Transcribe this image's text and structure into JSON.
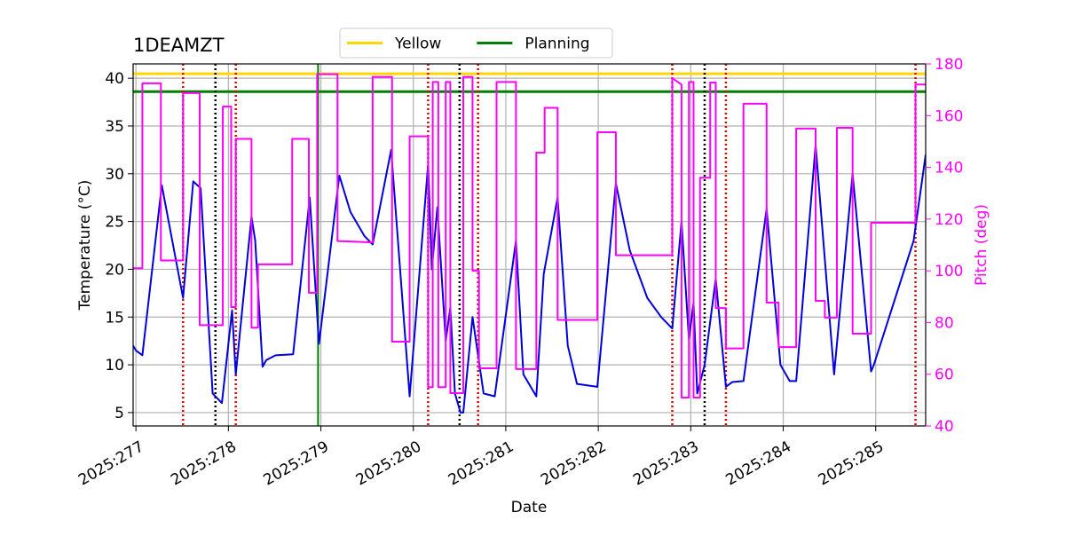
{
  "chart_data": {
    "type": "line",
    "title": "1DEAMZT",
    "xlabel": "Date",
    "ylabel": "Temperature (°C)",
    "y2label": "Pitch (deg)",
    "y2color": "#ff00ff",
    "grid": true,
    "legend": "upper center",
    "xlim": [
      276.97,
      285.54
    ],
    "xticks": [
      {
        "value": 277,
        "label": "2025:277"
      },
      {
        "value": 278,
        "label": "2025:278"
      },
      {
        "value": 279,
        "label": "2025:279"
      },
      {
        "value": 280,
        "label": "2025:280"
      },
      {
        "value": 281,
        "label": "2025:281"
      },
      {
        "value": 282,
        "label": "2025:282"
      },
      {
        "value": 283,
        "label": "2025:283"
      },
      {
        "value": 284,
        "label": "2025:284"
      },
      {
        "value": 285,
        "label": "2025:285"
      }
    ],
    "ylim": [
      3.6,
      41.5
    ],
    "yticks": [
      5,
      10,
      15,
      20,
      25,
      30,
      35,
      40
    ],
    "y2lim": [
      40,
      180
    ],
    "y2ticks": [
      40,
      60,
      80,
      100,
      120,
      140,
      160,
      180
    ],
    "hlines": [
      {
        "name": "Yellow",
        "color": "#ffd700",
        "value": 40.47
      },
      {
        "name": "Planning",
        "color": "#008000",
        "value": 38.6
      }
    ],
    "vlines": [
      {
        "color": "#dd0000",
        "style": "dotted",
        "x": [
          277.51,
          278.08,
          280.16,
          280.7,
          282.8,
          283.38,
          285.43
        ]
      },
      {
        "color": "#000000",
        "style": "dotted",
        "x": [
          277.86,
          280.5,
          283.15
        ]
      },
      {
        "color": "#008000",
        "style": "solid",
        "x": [
          278.97
        ]
      }
    ],
    "series": [
      {
        "color": "#0000dd",
        "x": [
          276.97,
          277.0,
          277.07,
          277.28,
          277.51,
          277.62,
          277.7,
          277.83,
          277.93,
          278.04,
          278.08,
          278.25,
          278.29,
          278.37,
          278.41,
          278.51,
          278.7,
          278.88,
          278.98,
          279.2,
          279.32,
          279.47,
          279.56,
          279.76,
          279.96,
          280.16,
          280.2,
          280.26,
          280.35,
          280.4,
          280.45,
          280.51,
          280.54,
          280.64,
          280.76,
          280.88,
          281.11,
          281.19,
          281.33,
          281.41,
          281.56,
          281.67,
          281.77,
          281.99,
          282.19,
          282.34,
          282.53,
          282.68,
          282.8,
          282.9,
          282.98,
          283.03,
          283.07,
          283.15,
          283.27,
          283.38,
          283.45,
          283.57,
          283.82,
          283.97,
          284.07,
          284.14,
          284.35,
          284.55,
          284.75,
          284.95,
          284.98,
          285.41,
          285.54
        ],
        "values": [
          12,
          11.5,
          11,
          28.8,
          17,
          29.2,
          28.5,
          7,
          6,
          15.7,
          9,
          25.5,
          23,
          9.8,
          10.5,
          11,
          11.1,
          27.5,
          12.2,
          29.8,
          26,
          23.5,
          22.6,
          32.5,
          6.7,
          31,
          20,
          26.5,
          12.5,
          16,
          7,
          5,
          5,
          15,
          7,
          6.7,
          23,
          9,
          6.7,
          19.5,
          27.5,
          12,
          8,
          7.7,
          29,
          22,
          17,
          15,
          13.8,
          25,
          12.7,
          16.5,
          7,
          10,
          19,
          7.7,
          8.2,
          8.3,
          26.3,
          10,
          8.3,
          8.3,
          33,
          9,
          30,
          9.3,
          10,
          23,
          32
        ]
      },
      {
        "color": "#ff00ff",
        "axis": "y2",
        "x": [
          276.97,
          277.07,
          277.07,
          277.27,
          277.27,
          277.51,
          277.51,
          277.69,
          277.69,
          277.94,
          277.94,
          278.03,
          278.03,
          278.08,
          278.08,
          278.25,
          278.25,
          278.32,
          278.32,
          278.69,
          278.69,
          278.87,
          278.87,
          278.96,
          278.96,
          279.18,
          279.18,
          279.56,
          279.56,
          279.77,
          279.77,
          279.96,
          279.96,
          280.16,
          280.16,
          280.21,
          280.21,
          280.27,
          280.27,
          280.35,
          280.35,
          280.4,
          280.4,
          280.54,
          280.54,
          280.64,
          280.64,
          280.71,
          280.71,
          280.9,
          280.9,
          281.11,
          281.11,
          281.33,
          281.33,
          281.42,
          281.42,
          281.56,
          281.56,
          281.99,
          281.99,
          282.19,
          282.19,
          282.8,
          282.8,
          282.9,
          282.9,
          282.98,
          282.98,
          283.03,
          283.03,
          283.1,
          283.1,
          283.21,
          283.21,
          283.27,
          283.27,
          283.38,
          283.38,
          283.57,
          283.57,
          283.82,
          283.82,
          283.95,
          283.95,
          284.14,
          284.14,
          284.35,
          284.35,
          284.45,
          284.45,
          284.58,
          284.58,
          284.75,
          284.75,
          284.95,
          284.95,
          285.43,
          285.43,
          285.54
        ],
        "values": [
          101,
          101,
          172.5,
          172.5,
          104,
          104,
          168.7,
          168.7,
          79,
          79,
          163.5,
          163.5,
          86,
          86,
          151,
          151,
          78,
          78,
          102.5,
          102.5,
          151,
          151,
          91.5,
          91.5,
          176,
          176,
          111.5,
          111,
          175,
          175,
          72.6,
          72.6,
          152,
          152,
          55,
          55,
          173,
          173,
          55,
          55,
          173,
          173,
          52.7,
          52.7,
          175,
          175,
          100,
          100,
          62.3,
          62.3,
          173,
          173,
          62,
          62,
          145.7,
          145.7,
          163,
          163,
          81,
          81,
          153.6,
          153.6,
          106,
          106,
          174.5,
          172,
          51,
          51,
          173,
          173,
          51,
          51,
          136,
          136,
          172.8,
          172.8,
          85.6,
          85.6,
          70,
          70,
          164.6,
          164.6,
          87.7,
          87.7,
          70.5,
          70.5,
          155,
          155,
          88.4,
          88.4,
          81.9,
          81.9,
          155.3,
          155.3,
          75.7,
          75.7,
          118.6,
          118.6,
          172,
          172
        ]
      }
    ]
  }
}
